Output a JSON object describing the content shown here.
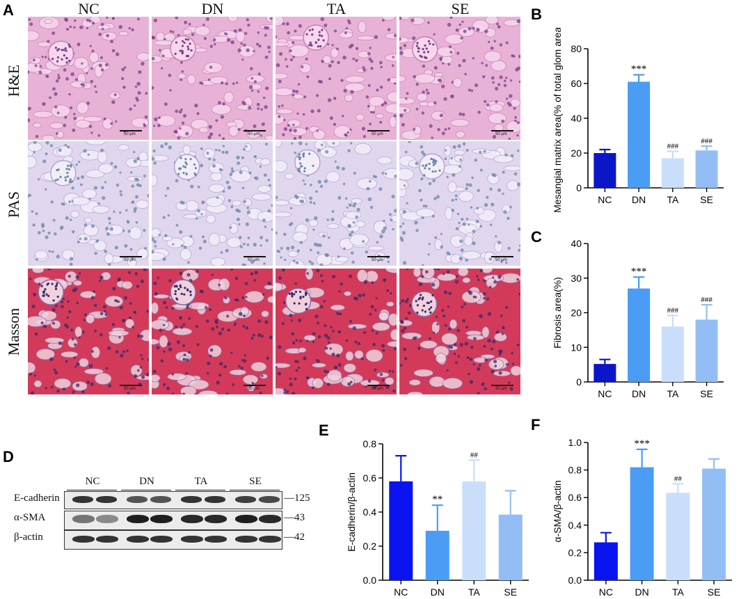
{
  "panels": {
    "a": "A",
    "b": "B",
    "c": "C",
    "d": "D",
    "e": "E",
    "f": "F"
  },
  "histology": {
    "columns": [
      "NC",
      "DN",
      "TA",
      "SE"
    ],
    "rows": [
      {
        "label": "H&E",
        "color": "#e4a8cf"
      },
      {
        "label": "PAS",
        "color": "#dcd2ec"
      },
      {
        "label": "Masson",
        "color": "#d2405c"
      }
    ],
    "scale_text": "50 μm"
  },
  "western_blot": {
    "groups": [
      "NC",
      "DN",
      "TA",
      "SE"
    ],
    "proteins": [
      {
        "name": "E-cadherin",
        "mw": "125"
      },
      {
        "name": "α-SMA",
        "mw": "43"
      },
      {
        "name": "β-actin",
        "mw": "42"
      }
    ]
  },
  "chart_data": [
    {
      "panel": "B",
      "type": "bar",
      "categories": [
        "NC",
        "DN",
        "TA",
        "SE"
      ],
      "values": [
        20,
        61,
        17,
        21.5
      ],
      "errors": [
        2,
        4,
        4,
        2.5
      ],
      "annotations": [
        "",
        "***",
        "###",
        "###"
      ],
      "colors": [
        "#0b16c8",
        "#4a9cf5",
        "#c9defa",
        "#93bef5"
      ],
      "ylabel": "Mesangial matrix area(% of total glom area)",
      "ylim": [
        0,
        80
      ],
      "yticks": [
        "0",
        "20",
        "40",
        "60",
        "80"
      ]
    },
    {
      "panel": "C",
      "type": "bar",
      "categories": [
        "NC",
        "DN",
        "TA",
        "SE"
      ],
      "values": [
        5.2,
        27,
        16,
        18
      ],
      "errors": [
        1.3,
        3.3,
        3.2,
        4.3
      ],
      "annotations": [
        "",
        "***",
        "###",
        "###"
      ],
      "colors": [
        "#0b16c8",
        "#4a9cf5",
        "#c9defa",
        "#93bef5"
      ],
      "ylabel": "Fibrosis area(%)",
      "ylim": [
        0,
        40
      ],
      "yticks": [
        "0",
        "10",
        "20",
        "30",
        "40"
      ]
    },
    {
      "panel": "E",
      "type": "bar",
      "categories": [
        "NC",
        "DN",
        "TA",
        "SE"
      ],
      "values": [
        0.58,
        0.29,
        0.58,
        0.385
      ],
      "errors": [
        0.15,
        0.15,
        0.125,
        0.14
      ],
      "annotations": [
        "",
        "**",
        "##",
        ""
      ],
      "colors": [
        "#0a14f0",
        "#4a9cf5",
        "#c9defa",
        "#93bef5"
      ],
      "ylabel": "E-cadherin/β-actin",
      "ylim": [
        0,
        0.8
      ],
      "yticks": [
        "0.0",
        "0.2",
        "0.4",
        "0.6",
        "0.8"
      ]
    },
    {
      "panel": "F",
      "type": "bar",
      "categories": [
        "NC",
        "DN",
        "TA",
        "SE"
      ],
      "values": [
        0.275,
        0.82,
        0.635,
        0.81
      ],
      "errors": [
        0.07,
        0.13,
        0.065,
        0.07
      ],
      "annotations": [
        "",
        "***",
        "##",
        ""
      ],
      "colors": [
        "#0a14f0",
        "#4a9cf5",
        "#c9defa",
        "#93bef5"
      ],
      "ylabel": "α-SMA/β-actin",
      "ylim": [
        0,
        1.0
      ],
      "yticks": [
        "0.0",
        "0.2",
        "0.4",
        "0.6",
        "0.8",
        "1.0"
      ]
    }
  ]
}
